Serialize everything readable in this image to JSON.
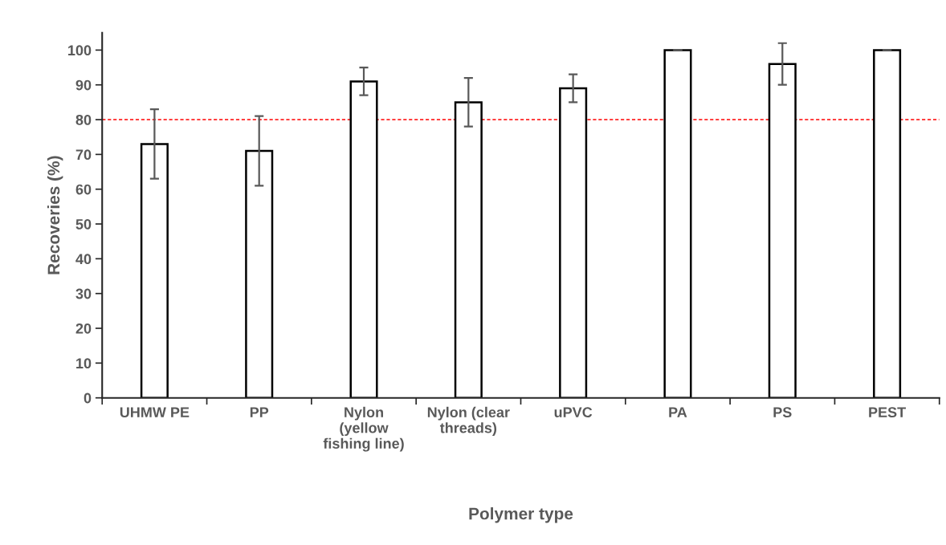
{
  "chart_data": {
    "type": "bar",
    "categories": [
      "UHMW PE",
      "PP",
      "Nylon\n(yellow\nfishing line)",
      "Nylon (clear\nthreads)",
      "uPVC",
      "PA",
      "PS",
      "PEST"
    ],
    "values": [
      73,
      71,
      91,
      85,
      89,
      100,
      96,
      100
    ],
    "errors": [
      10,
      10,
      4,
      7,
      4,
      0,
      6,
      0
    ],
    "color": "#ffffff",
    "xlabel": "Polymer type",
    "ylabel": "Recoveries (%)",
    "ylim": [
      0,
      105
    ],
    "yticks": [
      0,
      10,
      20,
      30,
      40,
      50,
      60,
      70,
      80,
      90,
      100
    ],
    "ref_lines": [
      {
        "axis": "y",
        "value": 80,
        "color": "#ff0000",
        "line_style": "dashed"
      }
    ],
    "grid": false,
    "legend": false
  }
}
